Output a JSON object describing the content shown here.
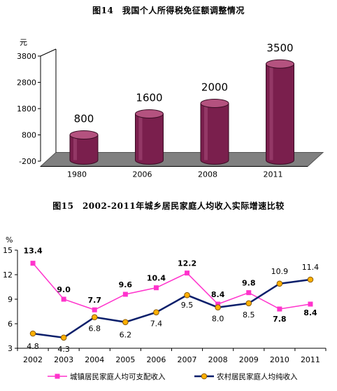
{
  "figure14": {
    "title": "图14　我国个人所得税免征额调整情况"
  },
  "figure15": {
    "title": "图15　2002-2011年城乡居民家庭人均收入实际增速比较"
  },
  "colors": {
    "bar_body": "#7a1f4d",
    "bar_top": "#b4527f",
    "floor": "#808080",
    "urban": "#ff33cc",
    "rural": "#0b1f6b",
    "rural_marker_fill": "#ffb000"
  },
  "chart_data": [
    {
      "type": "bar",
      "style": "3d-cylinder",
      "unit_label": "元",
      "categories": [
        "1980",
        "2006",
        "2008",
        "2011"
      ],
      "values": [
        800,
        1600,
        2000,
        3500
      ],
      "value_labels": [
        "800",
        "1600",
        "2000",
        "3500"
      ],
      "ylim": [
        -200,
        3800
      ],
      "y_ticks": [
        -200,
        800,
        1800,
        2800,
        3800
      ],
      "grid": false,
      "legend": "none"
    },
    {
      "type": "line",
      "unit_label": "%",
      "categories": [
        "2002",
        "2003",
        "2004",
        "2005",
        "2006",
        "2007",
        "2008",
        "2009",
        "2010",
        "2011"
      ],
      "ylim": [
        3,
        15
      ],
      "y_ticks": [
        3,
        6,
        9,
        12,
        15
      ],
      "grid": false,
      "legend": "bottom",
      "series": [
        {
          "name": "城镇居民家庭人均可支配收入",
          "marker": "square",
          "values": [
            13.4,
            9.0,
            7.7,
            9.6,
            10.4,
            12.2,
            8.4,
            9.8,
            7.8,
            8.4
          ],
          "labels": [
            "13.4",
            "9.0",
            "7.7",
            "9.6",
            "10.4",
            "12.2",
            "8.4",
            "9.8",
            "7.8",
            "8.4"
          ]
        },
        {
          "name": "农村居民家庭人均纯收入",
          "marker": "circle",
          "values": [
            4.8,
            4.3,
            6.8,
            6.2,
            7.4,
            9.5,
            8.0,
            8.5,
            10.9,
            11.4
          ],
          "labels": [
            "4.8",
            "4.3",
            "6.8",
            "6.2",
            "7.4",
            "9.5",
            "8.0",
            "8.5",
            "10.9",
            "11.4"
          ]
        }
      ]
    }
  ]
}
